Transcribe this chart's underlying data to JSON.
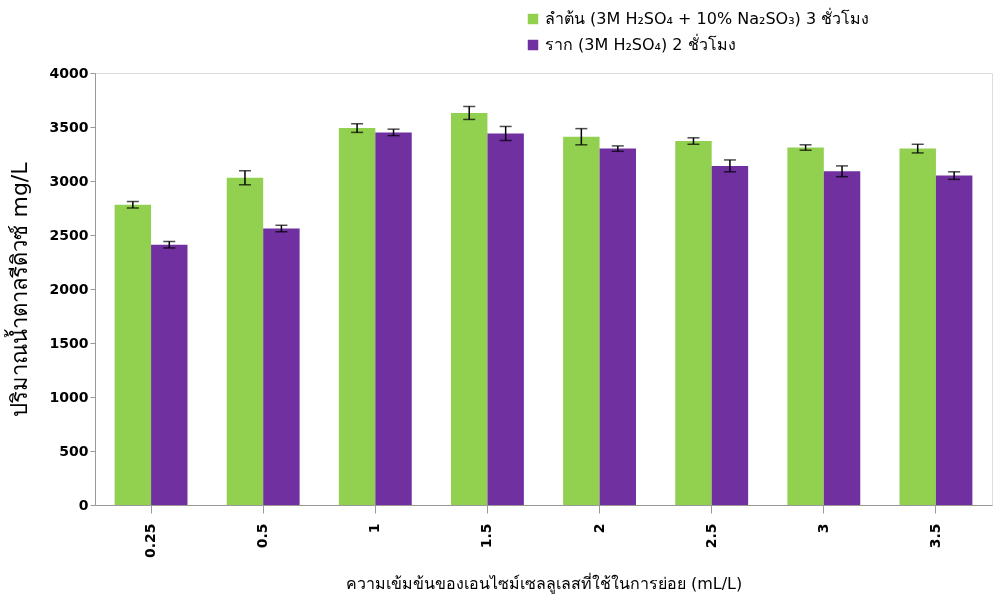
{
  "chart_data": {
    "type": "bar",
    "xlabel": "ความเข้มข้นของเอนไซม์เซลลูเลสที่ใช้ในการย่อย (mL/L)",
    "ylabel": "ปริมาณน้ำตาลรีดิวซ์ mg/L",
    "categories": [
      "0.25",
      "0.5",
      "1",
      "1.5",
      "2",
      "2.5",
      "3",
      "3.5"
    ],
    "series": [
      {
        "name": "ลำต้น  (3M H₂SO₄ + 10% Na₂SO₃) 3 ชั่วโมง",
        "color": "#92d050",
        "values": [
          2780,
          3030,
          3490,
          3630,
          3410,
          3370,
          3310,
          3300
        ],
        "errors": [
          30,
          65,
          40,
          60,
          75,
          30,
          25,
          40
        ]
      },
      {
        "name": "ราก  (3M H₂SO₄) 2 ชั่วโมง",
        "color": "#7030a0",
        "values": [
          2410,
          2560,
          3450,
          3440,
          3300,
          3140,
          3090,
          3050
        ],
        "errors": [
          30,
          30,
          30,
          65,
          25,
          55,
          50,
          35
        ]
      }
    ],
    "ylim": [
      0,
      4000
    ],
    "yticks": [
      0,
      500,
      1000,
      1500,
      2000,
      2500,
      3000,
      3500,
      4000
    ],
    "grid": false,
    "legend": "top right"
  }
}
